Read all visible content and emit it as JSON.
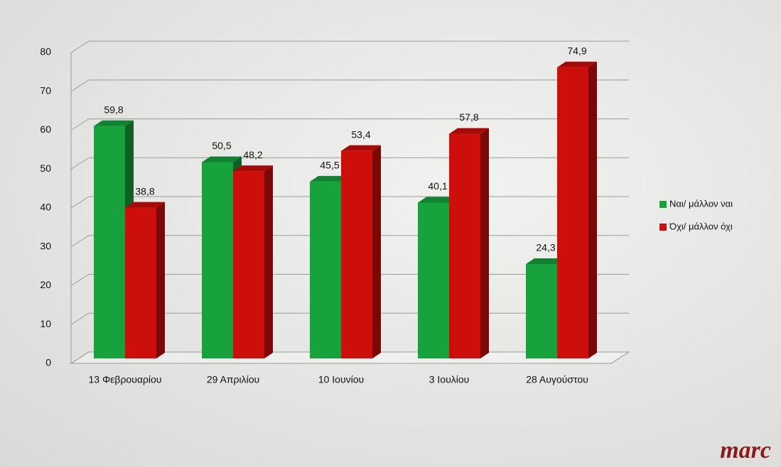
{
  "chart_data": {
    "type": "bar3d",
    "categories": [
      "13 Φεβρουαρίου",
      "29 Απριλίου",
      "10 Ιουνίου",
      "3 Ιουλίου",
      "28 Αυγούστου"
    ],
    "series": [
      {
        "name": "Ναι/ μάλλον ναι",
        "color": "#17a23e",
        "values": [
          59.8,
          50.5,
          45.5,
          40.1,
          24.3
        ],
        "value_labels": [
          "59,8",
          "50,5",
          "45,5",
          "40,1",
          "24,3"
        ]
      },
      {
        "name": "Όχι/ μάλλον όχι",
        "color": "#cc0f0a",
        "values": [
          38.8,
          48.2,
          53.4,
          57.8,
          74.9
        ],
        "value_labels": [
          "38,8",
          "48,2",
          "53,4",
          "57,8",
          "74,9"
        ]
      }
    ],
    "ylim": [
      0,
      80
    ],
    "yticks": [
      0,
      10,
      20,
      30,
      40,
      50,
      60,
      70,
      80
    ],
    "grid": true,
    "legend": "right",
    "logo": "marc"
  }
}
